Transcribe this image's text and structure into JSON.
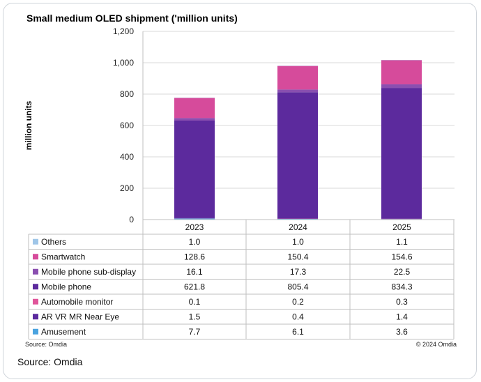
{
  "chart_data": {
    "type": "bar",
    "stacked": true,
    "title": "Small medium OLED shipment ('million units)",
    "ylabel": "million  units",
    "ylim": [
      0,
      1200
    ],
    "yticks": [
      "0",
      "200",
      "400",
      "600",
      "800",
      "1,000",
      "1,200"
    ],
    "ytick_values": [
      0,
      200,
      400,
      600,
      800,
      1000,
      1200
    ],
    "grid": true,
    "categories": [
      "2023",
      "2024",
      "2025"
    ],
    "series": [
      {
        "name": "Amusement",
        "color": "#4aa3df",
        "values": [
          7.7,
          6.1,
          3.6
        ],
        "labels": [
          "7.7",
          "6.1",
          "3.6"
        ]
      },
      {
        "name": "AR VR MR Near Eye",
        "color": "#5b2a9e",
        "values": [
          1.5,
          0.4,
          1.4
        ],
        "labels": [
          "1.5",
          "0.4",
          "1.4"
        ]
      },
      {
        "name": "Automobile monitor",
        "color": "#e0559a",
        "values": [
          0.1,
          0.2,
          0.3
        ],
        "labels": [
          "0.1",
          "0.2",
          "0.3"
        ]
      },
      {
        "name": "Mobile phone",
        "color": "#5c2a9d",
        "values": [
          621.8,
          805.4,
          834.3
        ],
        "labels": [
          "621.8",
          "805.4",
          "834.3"
        ]
      },
      {
        "name": "Mobile phone sub-display",
        "color": "#8a4fb0",
        "values": [
          16.1,
          17.3,
          22.5
        ],
        "labels": [
          "16.1",
          "17.3",
          "22.5"
        ]
      },
      {
        "name": "Smartwatch",
        "color": "#d64b9b",
        "values": [
          128.6,
          150.4,
          154.6
        ],
        "labels": [
          "128.6",
          "150.4",
          "154.6"
        ]
      },
      {
        "name": "Others",
        "color": "#9fc6e8",
        "values": [
          1.0,
          1.0,
          1.1
        ],
        "labels": [
          "1.0",
          "1.0",
          "1.1"
        ]
      }
    ],
    "table_order": [
      "Others",
      "Smartwatch",
      "Mobile phone sub-display",
      "Mobile phone",
      "Automobile monitor",
      "AR VR MR Near Eye",
      "Amusement"
    ]
  },
  "footer": {
    "source_small": "Source: Omdia",
    "copyright": "© 2024 Omdia",
    "source_big": "Source: Omdia"
  }
}
